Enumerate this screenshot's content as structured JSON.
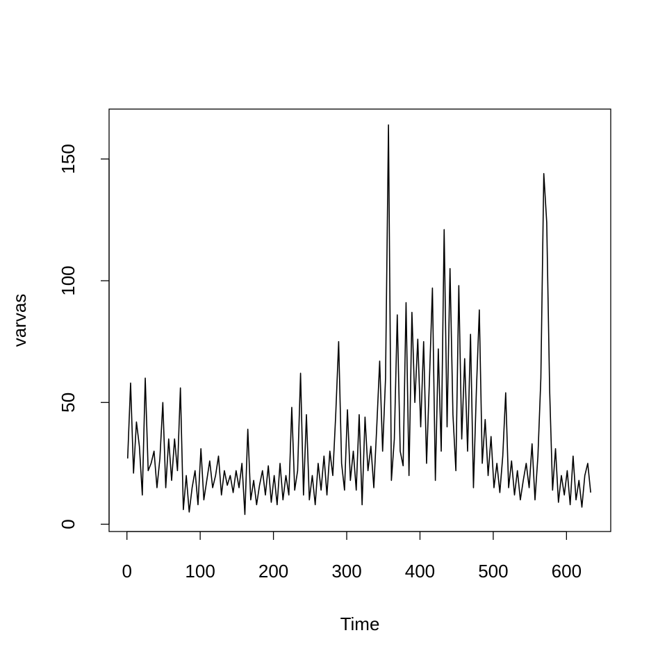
{
  "chart_data": {
    "type": "line",
    "xlabel": "Time",
    "ylabel": "varvas",
    "color": "#000000",
    "x": [
      1,
      5,
      9,
      13,
      17,
      21,
      25,
      29,
      33,
      37,
      41,
      45,
      49,
      53,
      57,
      61,
      65,
      69,
      73,
      77,
      81,
      85,
      89,
      93,
      97,
      101,
      105,
      109,
      113,
      117,
      121,
      125,
      129,
      133,
      137,
      141,
      145,
      149,
      153,
      157,
      161,
      165,
      169,
      173,
      177,
      181,
      185,
      189,
      193,
      197,
      201,
      205,
      209,
      213,
      217,
      221,
      225,
      229,
      233,
      237,
      241,
      245,
      249,
      253,
      257,
      261,
      265,
      269,
      273,
      277,
      281,
      285,
      289,
      293,
      297,
      301,
      305,
      309,
      313,
      317,
      321,
      325,
      329,
      333,
      337,
      341,
      345,
      349,
      353,
      357,
      361,
      365,
      369,
      373,
      377,
      381,
      385,
      389,
      393,
      397,
      401,
      405,
      409,
      413,
      417,
      421,
      425,
      429,
      433,
      437,
      441,
      445,
      449,
      453,
      457,
      461,
      465,
      469,
      473,
      477,
      481,
      485,
      489,
      493,
      497,
      501,
      505,
      509,
      513,
      517,
      521,
      525,
      529,
      533,
      537,
      541,
      545,
      549,
      553,
      557,
      561,
      565,
      569,
      573,
      577,
      581,
      585,
      589,
      593,
      597,
      601,
      605,
      609,
      613,
      617,
      621,
      625,
      629,
      633
    ],
    "values": [
      27,
      58,
      21,
      42,
      32,
      12,
      60,
      22,
      25,
      30,
      15,
      27,
      50,
      15,
      35,
      18,
      35,
      22,
      56,
      6,
      20,
      5,
      15,
      22,
      8,
      31,
      10,
      18,
      26,
      15,
      20,
      28,
      12,
      22,
      16,
      20,
      13,
      22,
      15,
      25,
      4,
      39,
      10,
      18,
      8,
      16,
      22,
      12,
      24,
      9,
      20,
      8,
      25,
      10,
      20,
      12,
      48,
      14,
      22,
      62,
      12,
      45,
      10,
      20,
      8,
      25,
      14,
      28,
      12,
      30,
      20,
      45,
      75,
      25,
      14,
      47,
      18,
      30,
      14,
      45,
      8,
      44,
      22,
      32,
      15,
      40,
      67,
      30,
      60,
      164,
      18,
      35,
      86,
      30,
      24,
      91,
      20,
      87,
      50,
      76,
      40,
      75,
      25,
      60,
      97,
      18,
      72,
      30,
      121,
      40,
      105,
      45,
      22,
      98,
      35,
      68,
      30,
      78,
      15,
      55,
      88,
      25,
      43,
      20,
      36,
      15,
      25,
      13,
      28,
      54,
      15,
      26,
      12,
      22,
      10,
      18,
      25,
      15,
      33,
      10,
      28,
      60,
      144,
      124,
      55,
      14,
      31,
      9,
      20,
      12,
      22,
      8,
      28,
      10,
      18,
      7,
      20,
      25,
      13
    ],
    "xlim": [
      -24.36,
      660.36
    ],
    "ylim": [
      -3,
      170.5
    ],
    "xticks": [
      0,
      100,
      200,
      300,
      400,
      500,
      600
    ],
    "yticks": [
      0,
      50,
      100,
      150
    ]
  }
}
